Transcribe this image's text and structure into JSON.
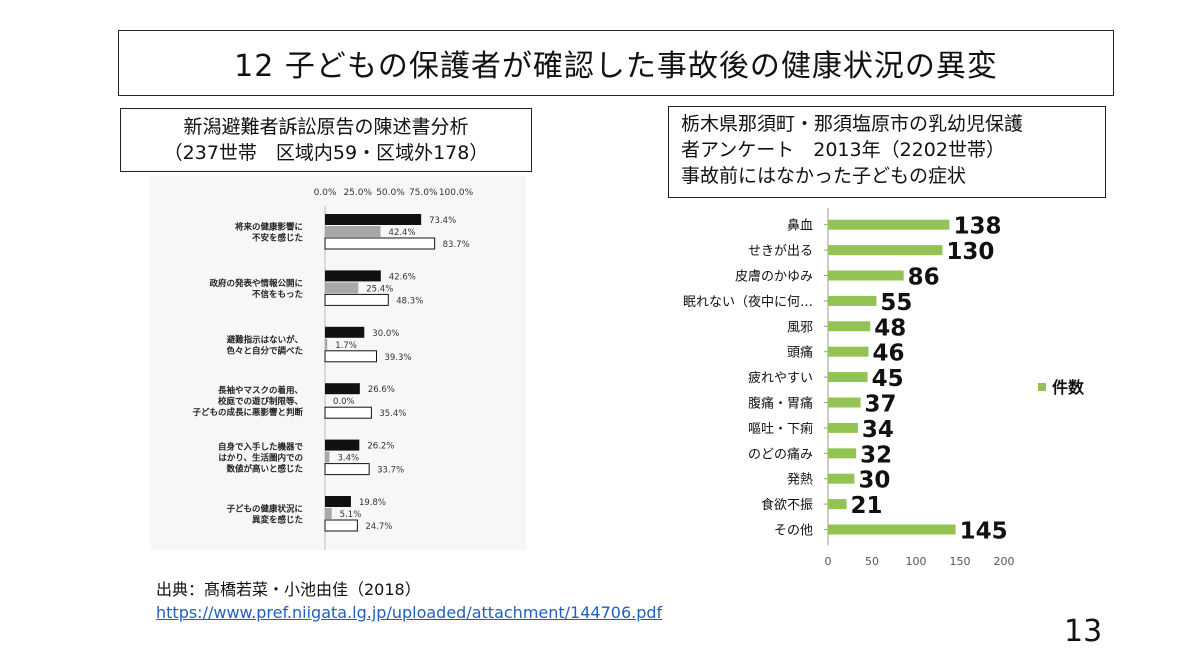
{
  "slide": {
    "title": "12  子どもの保護者が確認した事故後の健康状況の異変",
    "left_box": {
      "line1": "新潟避難者訴訟原告の陳述書分析",
      "line2": "（237世帯　区域内59・区域外178）"
    },
    "right_box": {
      "line1": "栃木県那須町・那須塩原市の乳幼児保護",
      "line2": "者アンケート　2013年（2202世帯）",
      "line3": "事故前にはなかった子どもの症状"
    },
    "source_label": "出典：髙橋若菜・小池由佳（2018）",
    "source_url": "https://www.pref.niigata.lg.jp/uploaded/attachment/144706.pdf",
    "page_number": "13"
  },
  "chart_data": [
    {
      "type": "bar",
      "orientation": "horizontal",
      "xlim": [
        0,
        100
      ],
      "x_ticks": [
        "0.0%",
        "25.0%",
        "50.0%",
        "75.0%",
        "100.0%"
      ],
      "colors": [
        "#111111",
        "#a8a8a8",
        "#ffffff"
      ],
      "categories": [
        [
          "将来の健康影響に",
          "不安を感じた"
        ],
        [
          "政府の発表や情報公開に",
          "不信をもった"
        ],
        [
          "避難指示はないが、",
          "色々と自分で調べた"
        ],
        [
          "長袖やマスクの着用、",
          "校庭での遊び制限等、",
          "子どもの成長に悪影響と判断"
        ],
        [
          "自身で入手した機器で",
          "はかり、生活圏内での",
          "数値が高いと感じた"
        ],
        [
          "子どもの健康状況に",
          "異変を感じた"
        ]
      ],
      "series": [
        {
          "values": [
            73.4,
            42.6,
            30.0,
            26.6,
            26.2,
            19.8
          ],
          "labels": [
            "73.4%",
            "42.6%",
            "30.0%",
            "26.6%",
            "26.2%",
            "19.8%"
          ]
        },
        {
          "values": [
            42.4,
            25.4,
            1.7,
            0.0,
            3.4,
            5.1
          ],
          "labels": [
            "42.4%",
            "25.4%",
            "1.7%",
            "0.0%",
            "3.4%",
            "5.1%"
          ]
        },
        {
          "values": [
            83.7,
            48.3,
            39.3,
            35.4,
            33.7,
            24.7
          ],
          "labels": [
            "83.7%",
            "48.3%",
            "39.3%",
            "35.4%",
            "33.7%",
            "24.7%"
          ]
        }
      ]
    },
    {
      "type": "bar",
      "orientation": "horizontal",
      "categories": [
        "鼻血",
        "せきが出る",
        "皮膚のかゆみ",
        "眠れない（夜中に何…",
        "風邪",
        "頭痛",
        "疲れやすい",
        "腹痛・胃痛",
        "嘔吐・下痢",
        "のどの痛み",
        "発熱",
        "食欲不振",
        "その他"
      ],
      "series": [
        {
          "name": "件数",
          "values": [
            138,
            130,
            86,
            55,
            48,
            46,
            45,
            37,
            34,
            32,
            30,
            21,
            145
          ],
          "color": "#92c353"
        }
      ],
      "xlim": [
        0,
        200
      ],
      "x_ticks": [
        "0",
        "50",
        "100",
        "150",
        "200"
      ],
      "legend": "right"
    }
  ]
}
